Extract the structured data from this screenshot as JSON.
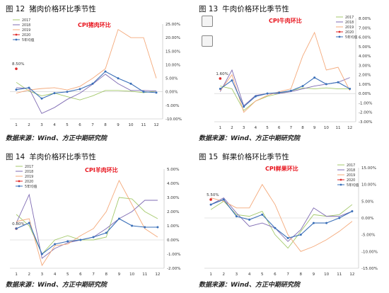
{
  "legend_labels": [
    "2017",
    "2018",
    "2019",
    "2020",
    "5年均值"
  ],
  "colors": {
    "y2017": "#a4c96b",
    "y2018": "#7f6bb3",
    "y2019": "#f4a97a",
    "y2020": "#e02a2a",
    "avg": "#3a6fb8",
    "callout": "#e8141d"
  },
  "panels": [
    {
      "fig_num": "图 12",
      "title": "猪肉价格环比季节性",
      "source": "数据来源：Wind、方正中期研究院",
      "callout": "CPI猪肉环比",
      "chart_data": {
        "type": "line",
        "x": [
          1,
          2,
          3,
          4,
          5,
          6,
          7,
          8,
          9,
          10,
          11,
          12
        ],
        "ylim": [
          -10,
          25
        ],
        "yticks": [
          "-10.00%",
          "-5.00%",
          "0.00%",
          "5.00%",
          "10.00%",
          "15.00%",
          "20.00%",
          "25.00%"
        ],
        "tick_values": [
          -10,
          -5,
          0,
          5,
          10,
          15,
          20,
          25
        ],
        "data_label": "8.50%",
        "series": [
          {
            "name": "2017",
            "values": [
              3.5,
              0.3,
              -1.5,
              -0.5,
              -1.8,
              -3.0,
              -1.5,
              0.5,
              0.5,
              0.2,
              -0.3,
              0.3
            ]
          },
          {
            "name": "2018",
            "values": [
              1.5,
              1.3,
              -8.0,
              -5.8,
              -2.8,
              -0.5,
              2.8,
              6.5,
              3.0,
              0.5,
              0.5,
              0.3
            ]
          },
          {
            "name": "2019",
            "values": [
              -0.5,
              0.7,
              1.2,
              1.5,
              0.7,
              2.0,
              5.0,
              8.5,
              23.0,
              20.0,
              20.0,
              5.0
            ]
          },
          {
            "name": "2020",
            "values": [
              8.5,
              null,
              null,
              null,
              null,
              null,
              null,
              null,
              null,
              null,
              null,
              null
            ]
          },
          {
            "name": "5年均值",
            "values": [
              0.8,
              1.5,
              -2.5,
              -0.5,
              0.0,
              1.0,
              3.0,
              7.5,
              5.0,
              3.0,
              0.0,
              -0.3
            ]
          }
        ]
      }
    },
    {
      "fig_num": "图 13",
      "title": "牛肉价格环比季节性",
      "source": "数据来源：Wind、方正中期研究院",
      "callout": "CPI牛肉环比",
      "chart_data": {
        "type": "line",
        "x": [
          1,
          2,
          3,
          4,
          5,
          6,
          7,
          8,
          9,
          10,
          11,
          12
        ],
        "ylim": [
          -3,
          8
        ],
        "yticks": [
          "-3.00%",
          "-2.00%",
          "-1.00%",
          "0.00%",
          "1.00%",
          "2.00%",
          "3.00%",
          "4.00%",
          "5.00%",
          "6.00%",
          "7.00%",
          "8.00%"
        ],
        "tick_values": [
          -3,
          -2,
          -1,
          0,
          1,
          2,
          3,
          4,
          5,
          6,
          7,
          8
        ],
        "data_label": "1.60%",
        "series": [
          {
            "name": "2017",
            "values": [
              0.8,
              0.5,
              -1.8,
              -0.8,
              -0.3,
              0.0,
              0.3,
              0.6,
              0.5,
              0.6,
              0.5,
              0.5
            ]
          },
          {
            "name": "2018",
            "values": [
              0.2,
              2.5,
              -1.3,
              -0.2,
              0.0,
              0.0,
              0.2,
              0.5,
              0.8,
              1.0,
              1.2,
              1.7
            ]
          },
          {
            "name": "2019",
            "values": [
              0.3,
              2.0,
              -2.0,
              -0.8,
              -0.2,
              0.2,
              0.5,
              4.0,
              6.5,
              2.5,
              2.8,
              0.3
            ]
          },
          {
            "name": "2020",
            "values": [
              1.6,
              null,
              null,
              null,
              null,
              null,
              null,
              null,
              null,
              null,
              null,
              null
            ]
          },
          {
            "name": "5年均值",
            "values": [
              0.5,
              1.4,
              -1.4,
              -0.3,
              0.0,
              0.1,
              0.3,
              0.8,
              1.7,
              1.0,
              1.2,
              0.5
            ]
          }
        ]
      }
    },
    {
      "fig_num": "图 14",
      "title": "羊肉价格环比季节性",
      "source": "数据来源：Wind、方正中期研究院",
      "callout": "CPI羊肉环比",
      "chart_data": {
        "type": "line",
        "x": [
          1,
          2,
          3,
          4,
          5,
          6,
          7,
          8,
          9,
          10,
          11,
          12
        ],
        "ylim": [
          -2,
          5
        ],
        "yticks": [
          "-2.00%",
          "-1.00%",
          "0.00%",
          "1.00%",
          "2.00%",
          "3.00%",
          "4.00%",
          "5.00%"
        ],
        "tick_values": [
          -2,
          -1,
          0,
          1,
          2,
          3,
          4,
          5
        ],
        "data_label": "0.80%",
        "series": [
          {
            "name": "2017",
            "values": [
              1.8,
              1.0,
              -1.0,
              0.0,
              0.3,
              0.0,
              0.0,
              0.2,
              3.0,
              2.9,
              2.0,
              1.5
            ]
          },
          {
            "name": "2018",
            "values": [
              1.2,
              3.2,
              -1.3,
              -0.6,
              -0.2,
              0.0,
              0.2,
              0.8,
              1.5,
              2.0,
              2.8,
              2.8
            ]
          },
          {
            "name": "2019",
            "values": [
              1.3,
              1.5,
              -1.8,
              -0.4,
              -0.3,
              0.3,
              0.8,
              2.0,
              4.2,
              2.5,
              0.8,
              0.2
            ]
          },
          {
            "name": "2020",
            "values": [
              0.8,
              null,
              null,
              null,
              null,
              null,
              null,
              null,
              null,
              null,
              null,
              null
            ]
          },
          {
            "name": "5年均值",
            "values": [
              0.8,
              1.2,
              -1.0,
              -0.3,
              -0.1,
              0.0,
              0.2,
              0.5,
              1.5,
              1.0,
              0.9,
              0.9
            ]
          }
        ]
      }
    },
    {
      "fig_num": "图 15",
      "title": "鲜果价格环比季节性",
      "source": "数据来源：Wind、方正中期研究院",
      "callout": "CPI鲜果环比",
      "chart_data": {
        "type": "line",
        "x": [
          1,
          2,
          3,
          4,
          5,
          6,
          7,
          8,
          9,
          10,
          11,
          12
        ],
        "ylim": [
          -15,
          15
        ],
        "yticks": [
          "-15.00%",
          "-10.00%",
          "-5.00%",
          "0.00%",
          "5.00%",
          "10.00%",
          "15.00%"
        ],
        "tick_values": [
          -15,
          -10,
          -5,
          0,
          5,
          10,
          15
        ],
        "data_label": "5.50%",
        "series": [
          {
            "name": "2017",
            "values": [
              2.5,
              5.0,
              1.0,
              0.5,
              2.0,
              -5.0,
              -9.0,
              -4.0,
              1.0,
              0.5,
              1.0,
              4.0
            ]
          },
          {
            "name": "2018",
            "values": [
              4.0,
              6.0,
              1.5,
              -2.5,
              -1.5,
              -3.0,
              -7.0,
              -3.5,
              3.0,
              0.5,
              0.5,
              2.0
            ]
          },
          {
            "name": "2019",
            "values": [
              6.0,
              5.0,
              3.0,
              3.0,
              10.0,
              4.0,
              -5.0,
              -10.0,
              -8.5,
              -6.5,
              -4.0,
              -1.0
            ]
          },
          {
            "name": "2020",
            "values": [
              5.5,
              null,
              null,
              null,
              null,
              null,
              null,
              null,
              null,
              null,
              null,
              null
            ]
          },
          {
            "name": "5年均值",
            "values": [
              4.0,
              5.5,
              0.5,
              -0.5,
              1.0,
              -3.0,
              -6.0,
              -5.0,
              -1.5,
              -1.5,
              0.0,
              2.0
            ]
          }
        ]
      }
    }
  ]
}
